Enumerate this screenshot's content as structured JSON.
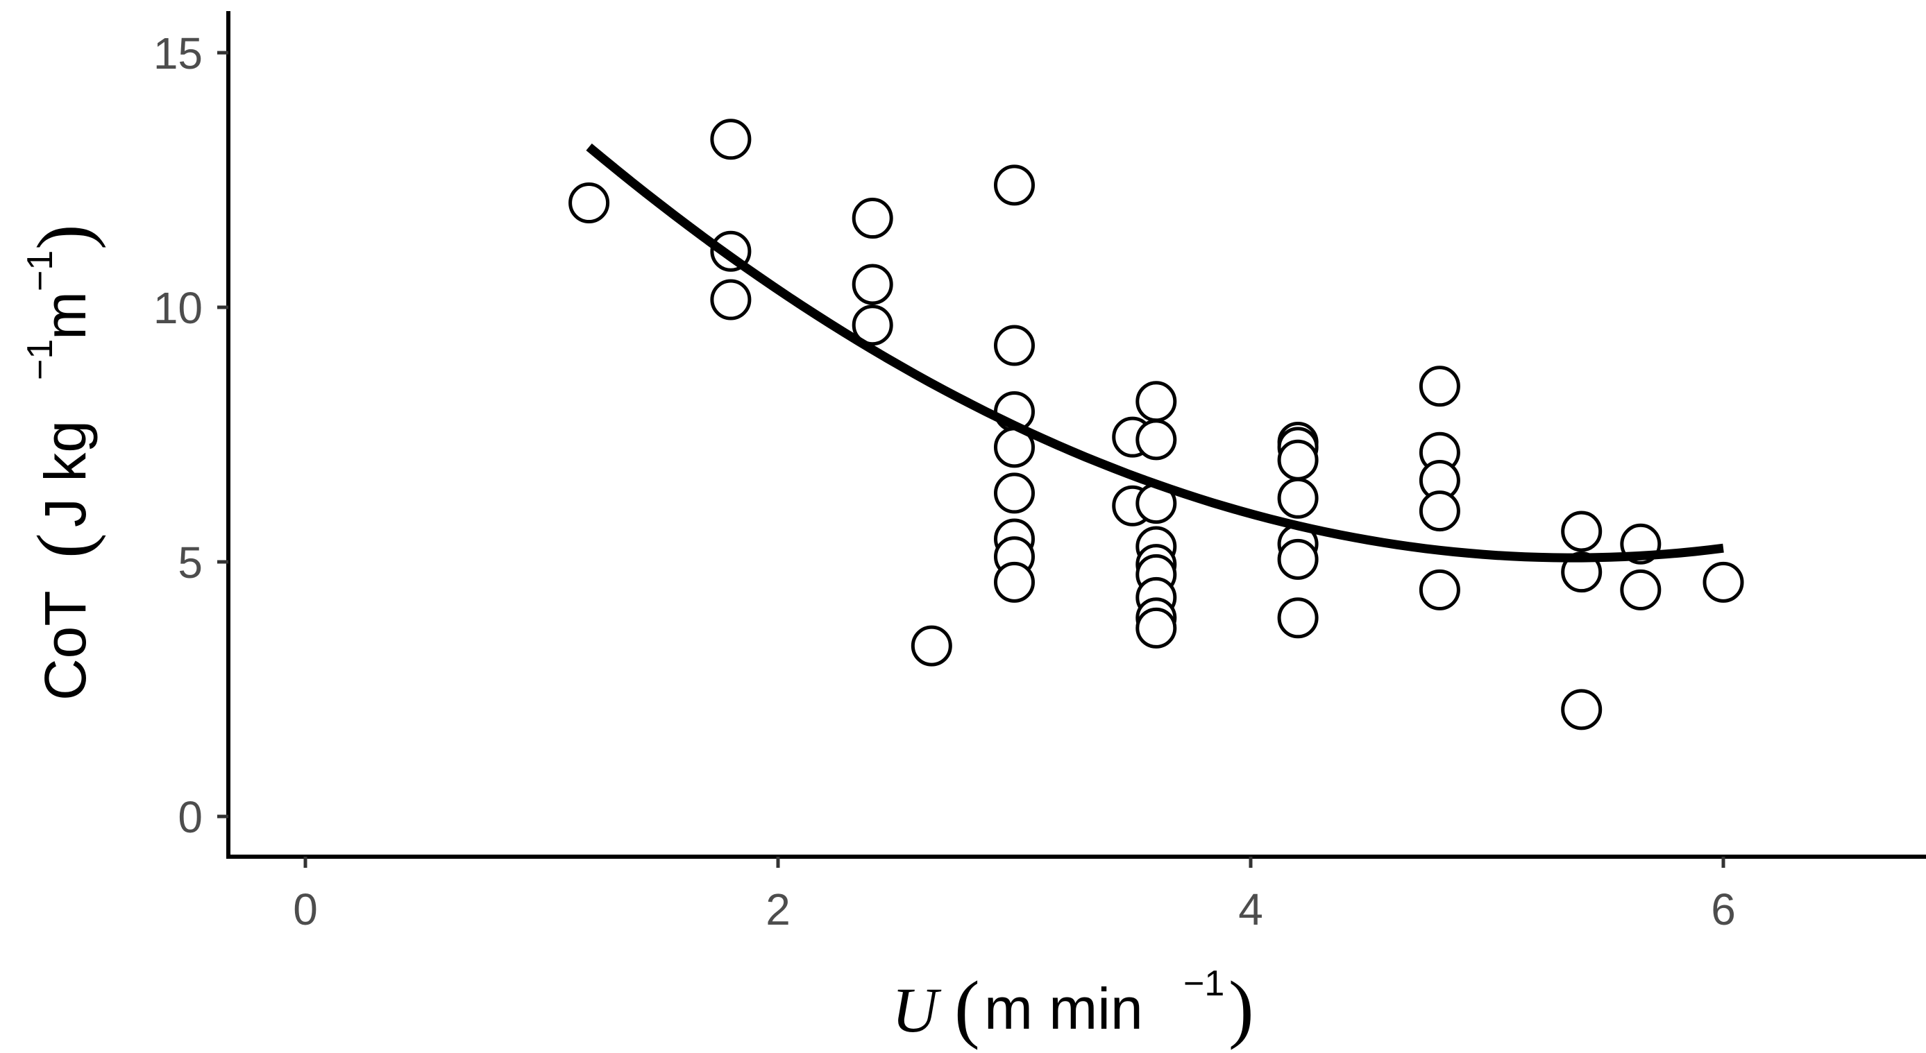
{
  "chart_data": {
    "type": "scatter",
    "x_axis": {
      "label_symbol": "U",
      "label_unit": "m min",
      "label_exponent": "−1",
      "ticks": [
        "0",
        "2",
        "4",
        "6"
      ],
      "tick_values": [
        0,
        2,
        4,
        6
      ],
      "range": [
        -0.35,
        6.85
      ]
    },
    "y_axis": {
      "label_main": "CoT",
      "label_unit_parts": [
        "J kg",
        "−1",
        "m",
        "−1"
      ],
      "ticks": [
        "0",
        "5",
        "10",
        "15"
      ],
      "tick_values": [
        0,
        5,
        10,
        15
      ],
      "range": [
        -0.75,
        15.8
      ]
    },
    "grid": false,
    "legend": "none",
    "colors": {
      "marker_stroke": "#000000",
      "marker_fill": "#ffffff",
      "fit_line": "#000000",
      "tick_text": "#4d4d4d"
    },
    "points": [
      {
        "x": 1.2,
        "y": 12.05
      },
      {
        "x": 1.8,
        "y": 13.3
      },
      {
        "x": 1.8,
        "y": 11.1
      },
      {
        "x": 1.8,
        "y": 10.15
      },
      {
        "x": 2.4,
        "y": 11.75
      },
      {
        "x": 2.4,
        "y": 10.45
      },
      {
        "x": 2.4,
        "y": 9.65
      },
      {
        "x": 2.65,
        "y": 3.35
      },
      {
        "x": 3.0,
        "y": 12.4
      },
      {
        "x": 3.0,
        "y": 9.25
      },
      {
        "x": 3.0,
        "y": 7.95
      },
      {
        "x": 3.0,
        "y": 7.25
      },
      {
        "x": 3.0,
        "y": 6.35
      },
      {
        "x": 3.0,
        "y": 5.45
      },
      {
        "x": 3.0,
        "y": 5.1
      },
      {
        "x": 3.0,
        "y": 4.6
      },
      {
        "x": 3.5,
        "y": 7.45
      },
      {
        "x": 3.5,
        "y": 6.1
      },
      {
        "x": 3.6,
        "y": 8.15
      },
      {
        "x": 3.6,
        "y": 7.4
      },
      {
        "x": 3.6,
        "y": 6.15
      },
      {
        "x": 3.6,
        "y": 5.3
      },
      {
        "x": 3.6,
        "y": 4.95
      },
      {
        "x": 3.6,
        "y": 4.75
      },
      {
        "x": 3.6,
        "y": 4.3
      },
      {
        "x": 3.6,
        "y": 3.9
      },
      {
        "x": 3.6,
        "y": 3.7
      },
      {
        "x": 4.2,
        "y": 7.35
      },
      {
        "x": 4.2,
        "y": 7.25
      },
      {
        "x": 4.2,
        "y": 7.0
      },
      {
        "x": 4.2,
        "y": 6.25
      },
      {
        "x": 4.2,
        "y": 5.35
      },
      {
        "x": 4.2,
        "y": 5.05
      },
      {
        "x": 4.2,
        "y": 3.9
      },
      {
        "x": 4.8,
        "y": 8.45
      },
      {
        "x": 4.8,
        "y": 7.15
      },
      {
        "x": 4.8,
        "y": 6.6
      },
      {
        "x": 4.8,
        "y": 6.0
      },
      {
        "x": 4.8,
        "y": 4.45
      },
      {
        "x": 5.4,
        "y": 5.6
      },
      {
        "x": 5.4,
        "y": 4.8
      },
      {
        "x": 5.4,
        "y": 2.1
      },
      {
        "x": 5.65,
        "y": 5.35
      },
      {
        "x": 5.65,
        "y": 4.45
      },
      {
        "x": 6.0,
        "y": 4.6
      }
    ],
    "fit_curve": {
      "type": "quadratic",
      "x_range": [
        1.2,
        6.0
      ],
      "samples": [
        {
          "x": 1.2,
          "y": 12.95
        },
        {
          "x": 1.8,
          "y": 11.1
        },
        {
          "x": 2.4,
          "y": 9.4
        },
        {
          "x": 3.0,
          "y": 7.75
        },
        {
          "x": 3.6,
          "y": 6.45
        },
        {
          "x": 4.2,
          "y": 5.6
        },
        {
          "x": 4.8,
          "y": 5.1
        },
        {
          "x": 5.4,
          "y": 5.05
        },
        {
          "x": 6.0,
          "y": 5.4
        }
      ]
    }
  }
}
